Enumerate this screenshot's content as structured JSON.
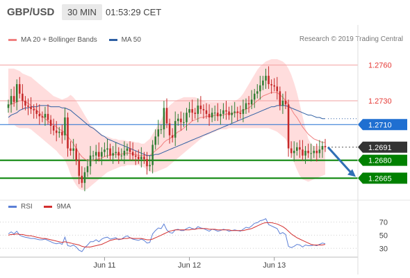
{
  "header": {
    "pair": "GBP/USD",
    "timeframe": "30 MIN",
    "time": "01:53:29 CET"
  },
  "legend": {
    "ma_bollinger": "MA 20 + Bollinger Bands",
    "ma50": "MA 50",
    "copyright": "Research © 2019 Trading Central"
  },
  "rsi_legend": {
    "rsi": "RSI",
    "ma": "9MA"
  },
  "colors": {
    "bollinger_fill": "#ffd9d9",
    "ma20": "#f08080",
    "ma50": "#2e5fa3",
    "up_candle": "#2e7d32",
    "down_candle": "#c62828",
    "resistance": "#e53935",
    "support": "#008000",
    "pivot": "#1f6fd1",
    "last": "#333333",
    "rsi": "#5b7fd6",
    "rsi_ma": "#d32f2f",
    "arrow": "#2f6fb5"
  },
  "chart_data": [
    {
      "type": "candlestick",
      "title": "",
      "ylim": [
        1.265,
        1.2775
      ],
      "x_ticks": [
        {
          "label": "Jun 11",
          "index": 34
        },
        {
          "label": "Jun 12",
          "index": 64
        },
        {
          "label": "Jun 13",
          "index": 94
        }
      ],
      "levels": [
        {
          "value": 1.276,
          "label": "1.2760",
          "kind": "resistance"
        },
        {
          "value": 1.273,
          "label": "1.2730",
          "kind": "resistance"
        },
        {
          "value": 1.271,
          "label": "1.2710",
          "kind": "pivot"
        },
        {
          "value": 1.2691,
          "label": "1.2691",
          "kind": "last"
        },
        {
          "value": 1.268,
          "label": "1.2680",
          "kind": "support"
        },
        {
          "value": 1.2665,
          "label": "1.2665",
          "kind": "support"
        }
      ],
      "forecast_arrow": {
        "from_value": 1.2691,
        "to_value": 1.2665
      },
      "closes": [
        1.2727,
        1.2734,
        1.2729,
        1.2744,
        1.2736,
        1.273,
        1.2726,
        1.2725,
        1.2723,
        1.2722,
        1.2719,
        1.2717,
        1.2716,
        1.2719,
        1.2714,
        1.2709,
        1.2705,
        1.2703,
        1.2704,
        1.2701,
        1.2716,
        1.269,
        1.2688,
        1.269,
        1.268,
        1.2667,
        1.2661,
        1.267,
        1.2675,
        1.2684,
        1.2684,
        1.2687,
        1.2683,
        1.2687,
        1.2689,
        1.269,
        1.2684,
        1.2686,
        1.2687,
        1.2684,
        1.2684,
        1.2688,
        1.269,
        1.2687,
        1.2684,
        1.2683,
        1.2681,
        1.2683,
        1.2681,
        1.2675,
        1.2676,
        1.2693,
        1.27,
        1.2706,
        1.2706,
        1.2724,
        1.2711,
        1.2701,
        1.2699,
        1.2713,
        1.2715,
        1.2712,
        1.2712,
        1.272,
        1.2723,
        1.272,
        1.2719,
        1.2726,
        1.2723,
        1.2722,
        1.2719,
        1.2716,
        1.272,
        1.272,
        1.2717,
        1.2719,
        1.2722,
        1.2721,
        1.2718,
        1.272,
        1.2721,
        1.272,
        1.2719,
        1.2723,
        1.2728,
        1.2727,
        1.2731,
        1.2736,
        1.2738,
        1.2743,
        1.2747,
        1.2751,
        1.2744,
        1.2743,
        1.2742,
        1.2738,
        1.2726,
        1.273,
        1.2727,
        1.269,
        1.2686,
        1.2688,
        1.2691,
        1.2689,
        1.2684,
        1.2688,
        1.2686,
        1.2686,
        1.2688,
        1.2686,
        1.2689,
        1.2692,
        1.2691
      ],
      "ma20": [
        1.2726,
        1.2727,
        1.2728,
        1.2729,
        1.273,
        1.273,
        1.2729,
        1.2728,
        1.2726,
        1.2724,
        1.2722,
        1.272,
        1.2717,
        1.2715,
        1.2713,
        1.2711,
        1.271,
        1.2708,
        1.2706,
        1.2705,
        1.2703,
        1.27,
        1.2697,
        1.2694,
        1.269,
        1.2686,
        1.2683,
        1.2681,
        1.268,
        1.268,
        1.268,
        1.2681,
        1.2681,
        1.2682,
        1.2683,
        1.2684,
        1.2684,
        1.2685,
        1.2685,
        1.2685,
        1.2685,
        1.2686,
        1.2686,
        1.2686,
        1.2685,
        1.2685,
        1.2684,
        1.2684,
        1.2684,
        1.2684,
        1.2684,
        1.2686,
        1.2688,
        1.269,
        1.2692,
        1.2695,
        1.2697,
        1.2698,
        1.27,
        1.2702,
        1.2704,
        1.2705,
        1.2707,
        1.2709,
        1.2711,
        1.2713,
        1.2714,
        1.2715,
        1.2716,
        1.2716,
        1.2717,
        1.2717,
        1.2717,
        1.2718,
        1.2718,
        1.2718,
        1.2718,
        1.2719,
        1.2719,
        1.2719,
        1.272,
        1.272,
        1.2721,
        1.2722,
        1.2723,
        1.2724,
        1.2726,
        1.2728,
        1.273,
        1.2732,
        1.2734,
        1.2735,
        1.2736,
        1.2737,
        1.2737,
        1.2737,
        1.2735,
        1.2733,
        1.273,
        1.2727,
        1.2723,
        1.2719,
        1.2716,
        1.2712,
        1.2708,
        1.2705,
        1.2702,
        1.27,
        1.2698,
        1.2697,
        1.2696,
        1.2695,
        1.2695
      ],
      "bb_upper": [
        1.2757,
        1.2757,
        1.2757,
        1.2756,
        1.2755,
        1.2753,
        1.2752,
        1.2751,
        1.275,
        1.2748,
        1.2746,
        1.2744,
        1.2742,
        1.274,
        1.2738,
        1.2736,
        1.2734,
        1.2733,
        1.2732,
        1.2731,
        1.2732,
        1.2733,
        1.2735,
        1.2733,
        1.273,
        1.2726,
        1.2722,
        1.2718,
        1.2714,
        1.271,
        1.2708,
        1.2706,
        1.2704,
        1.2702,
        1.27,
        1.27,
        1.2699,
        1.2698,
        1.2698,
        1.2697,
        1.2697,
        1.2697,
        1.2696,
        1.2696,
        1.2696,
        1.2695,
        1.2695,
        1.2694,
        1.2694,
        1.2696,
        1.2698,
        1.2702,
        1.2706,
        1.271,
        1.2714,
        1.2719,
        1.2723,
        1.2726,
        1.2728,
        1.273,
        1.2731,
        1.2732,
        1.2733,
        1.2733,
        1.2733,
        1.2733,
        1.2733,
        1.2732,
        1.2731,
        1.273,
        1.2729,
        1.2729,
        1.2729,
        1.2729,
        1.2729,
        1.2729,
        1.2729,
        1.2729,
        1.2729,
        1.2729,
        1.273,
        1.2731,
        1.2733,
        1.2736,
        1.274,
        1.2744,
        1.2748,
        1.2752,
        1.2756,
        1.2759,
        1.2761,
        1.2763,
        1.2764,
        1.2765,
        1.2765,
        1.2765,
        1.2764,
        1.2763,
        1.2761,
        1.2757,
        1.2752,
        1.2745,
        1.2737,
        1.2727,
        1.2717,
        1.2707,
        1.2698,
        1.2694,
        1.2692,
        1.2692,
        1.2692,
        1.2692,
        1.2692
      ],
      "bb_lower": [
        1.271,
        1.271,
        1.271,
        1.2708,
        1.2707,
        1.2707,
        1.2707,
        1.2707,
        1.2706,
        1.2704,
        1.2702,
        1.27,
        1.2698,
        1.2696,
        1.2694,
        1.2692,
        1.269,
        1.2688,
        1.2685,
        1.2683,
        1.268,
        1.2675,
        1.2668,
        1.2663,
        1.2659,
        1.2656,
        1.2655,
        1.2655,
        1.2656,
        1.2658,
        1.266,
        1.2662,
        1.2664,
        1.2666,
        1.2668,
        1.267,
        1.2671,
        1.2672,
        1.2673,
        1.2674,
        1.2675,
        1.2675,
        1.2676,
        1.2676,
        1.2676,
        1.2676,
        1.2676,
        1.2675,
        1.2674,
        1.2672,
        1.267,
        1.267,
        1.267,
        1.2671,
        1.2672,
        1.2673,
        1.2674,
        1.2676,
        1.2678,
        1.268,
        1.2682,
        1.2684,
        1.2686,
        1.2688,
        1.269,
        1.2692,
        1.2694,
        1.2696,
        1.2698,
        1.27,
        1.2701,
        1.2702,
        1.2703,
        1.2704,
        1.2705,
        1.2706,
        1.2706,
        1.2706,
        1.2707,
        1.2707,
        1.2707,
        1.2707,
        1.2707,
        1.2707,
        1.2707,
        1.2707,
        1.2707,
        1.2707,
        1.2707,
        1.2707,
        1.2707,
        1.2707,
        1.2707,
        1.2706,
        1.2705,
        1.2704,
        1.2702,
        1.27,
        1.2698,
        1.2693,
        1.2686,
        1.2678,
        1.2672,
        1.2667,
        1.2664,
        1.2663,
        1.2662,
        1.2663,
        1.2664,
        1.2665,
        1.2666,
        1.2667,
        1.2668
      ],
      "ma50": [
        1.2716,
        1.2718,
        1.2719,
        1.272,
        1.2722,
        1.2723,
        1.2724,
        1.2724,
        1.2725,
        1.2725,
        1.2725,
        1.2726,
        1.2726,
        1.2726,
        1.2726,
        1.2725,
        1.2725,
        1.2725,
        1.2725,
        1.2724,
        1.2724,
        1.2723,
        1.2722,
        1.272,
        1.2718,
        1.2716,
        1.2714,
        1.2712,
        1.271,
        1.2708,
        1.2707,
        1.2705,
        1.2703,
        1.2701,
        1.27,
        1.2698,
        1.2697,
        1.2696,
        1.2695,
        1.2694,
        1.2693,
        1.2692,
        1.2691,
        1.269,
        1.2689,
        1.2688,
        1.2687,
        1.2686,
        1.2685,
        1.2684,
        1.2684,
        1.2684,
        1.2685,
        1.2685,
        1.2686,
        1.2687,
        1.2688,
        1.2689,
        1.269,
        1.2691,
        1.2692,
        1.2693,
        1.2694,
        1.2695,
        1.2696,
        1.2697,
        1.2698,
        1.2699,
        1.27,
        1.2701,
        1.2702,
        1.2703,
        1.2704,
        1.2705,
        1.2706,
        1.2707,
        1.2708,
        1.2709,
        1.271,
        1.2711,
        1.2712,
        1.2713,
        1.2714,
        1.2715,
        1.2716,
        1.2717,
        1.2718,
        1.2719,
        1.272,
        1.2721,
        1.2722,
        1.2723,
        1.2724,
        1.2725,
        1.2725,
        1.2726,
        1.2726,
        1.2726,
        1.2726,
        1.2725,
        1.2724,
        1.2723,
        1.2722,
        1.2721,
        1.272,
        1.2719,
        1.2718,
        1.2718,
        1.2717,
        1.2716,
        1.2716,
        1.2715,
        1.2715
      ]
    },
    {
      "type": "line",
      "title": "",
      "ylim": [
        25,
        80
      ],
      "y_ticks": [
        70,
        50,
        30
      ],
      "rsi": [
        52,
        55,
        52,
        56,
        50,
        48,
        47,
        46,
        45,
        45,
        44,
        43,
        43,
        44,
        42,
        40,
        38,
        37,
        38,
        36,
        47,
        34,
        33,
        35,
        32,
        27,
        25,
        31,
        35,
        40,
        40,
        43,
        40,
        44,
        46,
        47,
        44,
        45,
        46,
        43,
        44,
        47,
        49,
        46,
        44,
        43,
        42,
        44,
        42,
        38,
        39,
        52,
        57,
        61,
        60,
        67,
        58,
        54,
        53,
        58,
        59,
        57,
        57,
        60,
        62,
        60,
        59,
        63,
        61,
        60,
        58,
        56,
        59,
        58,
        56,
        57,
        59,
        58,
        56,
        57,
        58,
        57,
        56,
        59,
        62,
        61,
        64,
        68,
        69,
        72,
        73,
        75,
        66,
        64,
        62,
        60,
        52,
        54,
        51,
        33,
        31,
        33,
        36,
        35,
        32,
        35,
        34,
        34,
        35,
        34,
        36,
        38,
        37
      ],
      "ma9": [
        50,
        51,
        51,
        52,
        51,
        51,
        50,
        49,
        49,
        48,
        47,
        46,
        45,
        45,
        44,
        43,
        42,
        41,
        40,
        39,
        40,
        39,
        38,
        37,
        36,
        35,
        33,
        32,
        32,
        32,
        33,
        34,
        35,
        36,
        38,
        40,
        42,
        43,
        44,
        44,
        44,
        45,
        45,
        46,
        45,
        45,
        45,
        45,
        44,
        43,
        43,
        44,
        46,
        48,
        50,
        52,
        54,
        56,
        57,
        58,
        58,
        58,
        58,
        58,
        58,
        59,
        59,
        60,
        60,
        60,
        60,
        59,
        59,
        59,
        58,
        58,
        58,
        58,
        58,
        57,
        57,
        57,
        57,
        57,
        58,
        59,
        60,
        62,
        64,
        66,
        68,
        69,
        69,
        69,
        68,
        67,
        65,
        63,
        60,
        56,
        52,
        49,
        46,
        44,
        42,
        40,
        38,
        36,
        35,
        35,
        35,
        35,
        36
      ]
    }
  ]
}
